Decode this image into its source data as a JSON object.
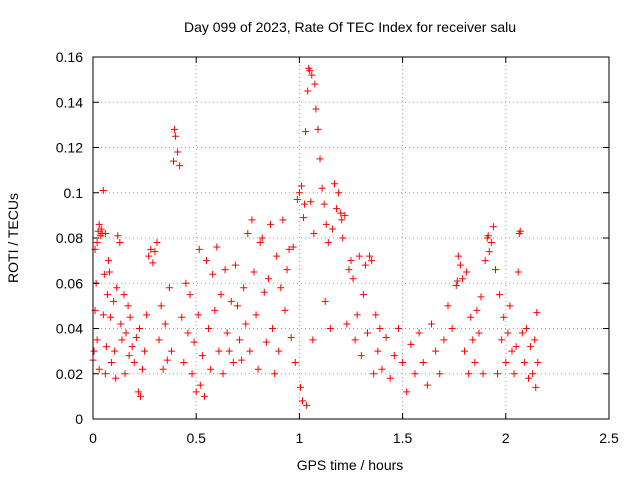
{
  "chart_data": {
    "type": "scatter",
    "title": "Day 099 of 2023, Rate Of TEC Index for receiver salu",
    "xlabel": "GPS time / hours",
    "ylabel": "ROTI / TECUs",
    "xlim": [
      0,
      2.5
    ],
    "ylim": [
      0,
      0.16
    ],
    "x_ticks": [
      0,
      0.5,
      1,
      1.5,
      2,
      2.5
    ],
    "x_tick_labels": [
      "0",
      "0.5",
      "1",
      "1.5",
      "2",
      "2.5"
    ],
    "y_ticks": [
      0,
      0.02,
      0.04,
      0.06,
      0.08,
      0.1,
      0.12,
      0.14,
      0.16
    ],
    "y_tick_labels": [
      "0",
      "0.02",
      "0.04",
      "0.06",
      "0.08",
      "0.1",
      "0.12",
      "0.14",
      "0.16"
    ],
    "grid": true,
    "marker": "plus",
    "color": "#ff0000",
    "points": [
      [
        0.0,
        0.026
      ],
      [
        0.005,
        0.03
      ],
      [
        0.01,
        0.048
      ],
      [
        0.01,
        0.075
      ],
      [
        0.015,
        0.06
      ],
      [
        0.02,
        0.078
      ],
      [
        0.02,
        0.035
      ],
      [
        0.025,
        0.083
      ],
      [
        0.03,
        0.086
      ],
      [
        0.03,
        0.022
      ],
      [
        0.035,
        0.081
      ],
      [
        0.04,
        0.084
      ],
      [
        0.045,
        0.082
      ],
      [
        0.05,
        0.101
      ],
      [
        0.05,
        0.046
      ],
      [
        0.055,
        0.064
      ],
      [
        0.06,
        0.082
      ],
      [
        0.06,
        0.02
      ],
      [
        0.065,
        0.032
      ],
      [
        0.07,
        0.055
      ],
      [
        0.075,
        0.07
      ],
      [
        0.08,
        0.065
      ],
      [
        0.085,
        0.045
      ],
      [
        0.09,
        0.025
      ],
      [
        0.1,
        0.052
      ],
      [
        0.105,
        0.03
      ],
      [
        0.11,
        0.018
      ],
      [
        0.115,
        0.058
      ],
      [
        0.12,
        0.081
      ],
      [
        0.13,
        0.078
      ],
      [
        0.135,
        0.042
      ],
      [
        0.14,
        0.035
      ],
      [
        0.15,
        0.055
      ],
      [
        0.155,
        0.02
      ],
      [
        0.16,
        0.038
      ],
      [
        0.17,
        0.05
      ],
      [
        0.175,
        0.028
      ],
      [
        0.18,
        0.045
      ],
      [
        0.19,
        0.032
      ],
      [
        0.2,
        0.025
      ],
      [
        0.21,
        0.036
      ],
      [
        0.22,
        0.012
      ],
      [
        0.225,
        0.04
      ],
      [
        0.23,
        0.01
      ],
      [
        0.24,
        0.022
      ],
      [
        0.25,
        0.03
      ],
      [
        0.26,
        0.046
      ],
      [
        0.27,
        0.072
      ],
      [
        0.28,
        0.075
      ],
      [
        0.29,
        0.069
      ],
      [
        0.3,
        0.074
      ],
      [
        0.31,
        0.078
      ],
      [
        0.32,
        0.035
      ],
      [
        0.33,
        0.05
      ],
      [
        0.34,
        0.022
      ],
      [
        0.35,
        0.042
      ],
      [
        0.36,
        0.026
      ],
      [
        0.37,
        0.058
      ],
      [
        0.38,
        0.03
      ],
      [
        0.39,
        0.114
      ],
      [
        0.395,
        0.128
      ],
      [
        0.4,
        0.125
      ],
      [
        0.41,
        0.118
      ],
      [
        0.42,
        0.112
      ],
      [
        0.43,
        0.045
      ],
      [
        0.44,
        0.025
      ],
      [
        0.45,
        0.06
      ],
      [
        0.46,
        0.038
      ],
      [
        0.47,
        0.055
      ],
      [
        0.48,
        0.02
      ],
      [
        0.49,
        0.034
      ],
      [
        0.5,
        0.012
      ],
      [
        0.51,
        0.046
      ],
      [
        0.515,
        0.075
      ],
      [
        0.52,
        0.015
      ],
      [
        0.53,
        0.028
      ],
      [
        0.54,
        0.01
      ],
      [
        0.55,
        0.07
      ],
      [
        0.56,
        0.04
      ],
      [
        0.57,
        0.022
      ],
      [
        0.58,
        0.064
      ],
      [
        0.59,
        0.048
      ],
      [
        0.6,
        0.076
      ],
      [
        0.61,
        0.03
      ],
      [
        0.62,
        0.055
      ],
      [
        0.63,
        0.02
      ],
      [
        0.64,
        0.066
      ],
      [
        0.65,
        0.038
      ],
      [
        0.66,
        0.03
      ],
      [
        0.67,
        0.052
      ],
      [
        0.68,
        0.025
      ],
      [
        0.69,
        0.068
      ],
      [
        0.7,
        0.05
      ],
      [
        0.71,
        0.035
      ],
      [
        0.72,
        0.026
      ],
      [
        0.73,
        0.058
      ],
      [
        0.74,
        0.042
      ],
      [
        0.75,
        0.082
      ],
      [
        0.76,
        0.03
      ],
      [
        0.77,
        0.088
      ],
      [
        0.78,
        0.065
      ],
      [
        0.79,
        0.046
      ],
      [
        0.8,
        0.022
      ],
      [
        0.81,
        0.078
      ],
      [
        0.82,
        0.08
      ],
      [
        0.83,
        0.056
      ],
      [
        0.84,
        0.034
      ],
      [
        0.85,
        0.062
      ],
      [
        0.86,
        0.086
      ],
      [
        0.87,
        0.04
      ],
      [
        0.88,
        0.02
      ],
      [
        0.89,
        0.072
      ],
      [
        0.9,
        0.03
      ],
      [
        0.91,
        0.058
      ],
      [
        0.92,
        0.088
      ],
      [
        0.93,
        0.048
      ],
      [
        0.94,
        0.066
      ],
      [
        0.95,
        0.075
      ],
      [
        0.96,
        0.036
      ],
      [
        0.97,
        0.076
      ],
      [
        0.98,
        0.025
      ],
      [
        0.99,
        0.097
      ],
      [
        1.0,
        0.1
      ],
      [
        1.005,
        0.014
      ],
      [
        1.01,
        0.103
      ],
      [
        1.015,
        0.008
      ],
      [
        1.02,
        0.089
      ],
      [
        1.025,
        0.095
      ],
      [
        1.03,
        0.127
      ],
      [
        1.035,
        0.006
      ],
      [
        1.04,
        0.145
      ],
      [
        1.045,
        0.155
      ],
      [
        1.05,
        0.154
      ],
      [
        1.055,
        0.096
      ],
      [
        1.06,
        0.152
      ],
      [
        1.065,
        0.035
      ],
      [
        1.07,
        0.082
      ],
      [
        1.075,
        0.148
      ],
      [
        1.08,
        0.137
      ],
      [
        1.09,
        0.128
      ],
      [
        1.1,
        0.115
      ],
      [
        1.11,
        0.102
      ],
      [
        1.12,
        0.095
      ],
      [
        1.125,
        0.052
      ],
      [
        1.13,
        0.086
      ],
      [
        1.14,
        0.078
      ],
      [
        1.15,
        0.04
      ],
      [
        1.16,
        0.084
      ],
      [
        1.17,
        0.104
      ],
      [
        1.18,
        0.093
      ],
      [
        1.19,
        0.1
      ],
      [
        1.2,
        0.091
      ],
      [
        1.205,
        0.088
      ],
      [
        1.21,
        0.08
      ],
      [
        1.22,
        0.09
      ],
      [
        1.23,
        0.042
      ],
      [
        1.24,
        0.066
      ],
      [
        1.25,
        0.07
      ],
      [
        1.26,
        0.062
      ],
      [
        1.27,
        0.035
      ],
      [
        1.28,
        0.046
      ],
      [
        1.29,
        0.072
      ],
      [
        1.3,
        0.028
      ],
      [
        1.31,
        0.055
      ],
      [
        1.32,
        0.068
      ],
      [
        1.33,
        0.038
      ],
      [
        1.34,
        0.072
      ],
      [
        1.35,
        0.07
      ],
      [
        1.36,
        0.02
      ],
      [
        1.37,
        0.046
      ],
      [
        1.38,
        0.03
      ],
      [
        1.39,
        0.04
      ],
      [
        1.4,
        0.022
      ],
      [
        1.42,
        0.036
      ],
      [
        1.44,
        0.018
      ],
      [
        1.46,
        0.028
      ],
      [
        1.48,
        0.04
      ],
      [
        1.5,
        0.025
      ],
      [
        1.52,
        0.012
      ],
      [
        1.54,
        0.033
      ],
      [
        1.56,
        0.02
      ],
      [
        1.58,
        0.038
      ],
      [
        1.6,
        0.025
      ],
      [
        1.62,
        0.015
      ],
      [
        1.64,
        0.042
      ],
      [
        1.66,
        0.03
      ],
      [
        1.68,
        0.02
      ],
      [
        1.7,
        0.035
      ],
      [
        1.72,
        0.05
      ],
      [
        1.74,
        0.04
      ],
      [
        1.76,
        0.059
      ],
      [
        1.765,
        0.061
      ],
      [
        1.77,
        0.072
      ],
      [
        1.78,
        0.068
      ],
      [
        1.79,
        0.062
      ],
      [
        1.8,
        0.03
      ],
      [
        1.81,
        0.065
      ],
      [
        1.82,
        0.02
      ],
      [
        1.83,
        0.045
      ],
      [
        1.84,
        0.035
      ],
      [
        1.85,
        0.025
      ],
      [
        1.86,
        0.048
      ],
      [
        1.87,
        0.038
      ],
      [
        1.88,
        0.054
      ],
      [
        1.89,
        0.02
      ],
      [
        1.9,
        0.07
      ],
      [
        1.91,
        0.08
      ],
      [
        1.915,
        0.081
      ],
      [
        1.92,
        0.074
      ],
      [
        1.93,
        0.078
      ],
      [
        1.94,
        0.085
      ],
      [
        1.95,
        0.066
      ],
      [
        1.96,
        0.02
      ],
      [
        1.97,
        0.055
      ],
      [
        1.98,
        0.035
      ],
      [
        1.99,
        0.045
      ],
      [
        2.0,
        0.025
      ],
      [
        2.01,
        0.038
      ],
      [
        2.02,
        0.05
      ],
      [
        2.03,
        0.03
      ],
      [
        2.04,
        0.02
      ],
      [
        2.05,
        0.032
      ],
      [
        2.06,
        0.065
      ],
      [
        2.065,
        0.082
      ],
      [
        2.07,
        0.083
      ],
      [
        2.08,
        0.038
      ],
      [
        2.09,
        0.025
      ],
      [
        2.1,
        0.04
      ],
      [
        2.11,
        0.018
      ],
      [
        2.12,
        0.032
      ],
      [
        2.13,
        0.02
      ],
      [
        2.14,
        0.035
      ],
      [
        2.145,
        0.014
      ],
      [
        2.15,
        0.047
      ],
      [
        2.155,
        0.025
      ]
    ]
  }
}
